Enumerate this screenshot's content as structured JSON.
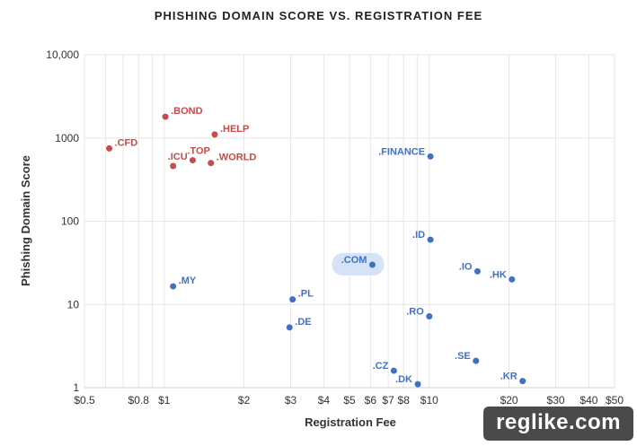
{
  "chart_data": {
    "type": "scatter",
    "title": "PHISHING DOMAIN SCORE VS. REGISTRATION FEE",
    "xlabel": "Registration Fee",
    "ylabel": "Phishing Domain Score",
    "x_scale": "log",
    "y_scale": "log",
    "xlim": [
      0.5,
      50
    ],
    "ylim": [
      1,
      10000
    ],
    "x_ticks": [
      {
        "v": 0.5,
        "label": "$0.5"
      },
      {
        "v": 0.8,
        "label": "$0.8"
      },
      {
        "v": 1,
        "label": "$1"
      },
      {
        "v": 2,
        "label": "$2"
      },
      {
        "v": 3,
        "label": "$3"
      },
      {
        "v": 4,
        "label": "$4"
      },
      {
        "v": 5,
        "label": "$5"
      },
      {
        "v": 6,
        "label": "$6"
      },
      {
        "v": 7,
        "label": "$7"
      },
      {
        "v": 8,
        "label": "$8"
      },
      {
        "v": 10,
        "label": "$10"
      },
      {
        "v": 20,
        "label": "$20"
      },
      {
        "v": 30,
        "label": "$30"
      },
      {
        "v": 40,
        "label": "$40"
      },
      {
        "v": 50,
        "label": "$50"
      }
    ],
    "x_minor_gridlines": [
      0.6,
      0.7,
      0.8,
      0.9,
      1,
      2,
      3,
      4,
      5,
      6,
      7,
      8,
      9,
      10,
      20,
      30,
      40,
      50
    ],
    "y_ticks": [
      {
        "v": 1,
        "label": "1"
      },
      {
        "v": 10,
        "label": "10"
      },
      {
        "v": 100,
        "label": "100"
      },
      {
        "v": 1000,
        "label": "1000"
      },
      {
        "v": 10000,
        "label": "10,000"
      }
    ],
    "grid": true,
    "colors": {
      "red": "#c94a4a",
      "blue": "#3f72c4",
      "highlight": "#d6e3f7",
      "grid": "#e6e6e6"
    },
    "points": [
      {
        "name": ".CFD",
        "x": 0.62,
        "y": 750,
        "color": "red",
        "label_pos": "right"
      },
      {
        "name": ".BOND",
        "x": 1.01,
        "y": 1800,
        "color": "red",
        "label_pos": "right"
      },
      {
        "name": ".HELP",
        "x": 1.55,
        "y": 1100,
        "color": "red",
        "label_pos": "right"
      },
      {
        "name": ".ICU",
        "x": 1.08,
        "y": 460,
        "color": "red",
        "label_pos": "above-right"
      },
      {
        "name": ".TOP",
        "x": 1.28,
        "y": 540,
        "color": "red",
        "label_pos": "above-right"
      },
      {
        "name": ".WORLD",
        "x": 1.5,
        "y": 500,
        "color": "red",
        "label_pos": "right"
      },
      {
        "name": ".FINANCE",
        "x": 10.1,
        "y": 600,
        "color": "blue",
        "label_pos": "left"
      },
      {
        "name": ".ID",
        "x": 10.1,
        "y": 60,
        "color": "blue",
        "label_pos": "left"
      },
      {
        "name": ".COM",
        "x": 6.1,
        "y": 30,
        "color": "blue",
        "label_pos": "left",
        "highlight": true
      },
      {
        "name": ".IO",
        "x": 15.2,
        "y": 25,
        "color": "blue",
        "label_pos": "left"
      },
      {
        "name": ".HK",
        "x": 20.5,
        "y": 20,
        "color": "blue",
        "label_pos": "left"
      },
      {
        "name": ".MY",
        "x": 1.08,
        "y": 16.5,
        "color": "blue",
        "label_pos": "right"
      },
      {
        "name": ".PL",
        "x": 3.05,
        "y": 11.5,
        "color": "blue",
        "label_pos": "right"
      },
      {
        "name": ".RO",
        "x": 10.0,
        "y": 7.2,
        "color": "blue",
        "label_pos": "left"
      },
      {
        "name": ".DE",
        "x": 2.97,
        "y": 5.3,
        "color": "blue",
        "label_pos": "right"
      },
      {
        "name": ".SE",
        "x": 15.0,
        "y": 2.1,
        "color": "blue",
        "label_pos": "left"
      },
      {
        "name": ".CZ",
        "x": 7.35,
        "y": 1.6,
        "color": "blue",
        "label_pos": "left"
      },
      {
        "name": ".DK",
        "x": 9.05,
        "y": 1.1,
        "color": "blue",
        "label_pos": "left"
      },
      {
        "name": ".KR",
        "x": 22.5,
        "y": 1.2,
        "color": "blue",
        "label_pos": "left"
      }
    ]
  },
  "watermark": "reglike.com"
}
